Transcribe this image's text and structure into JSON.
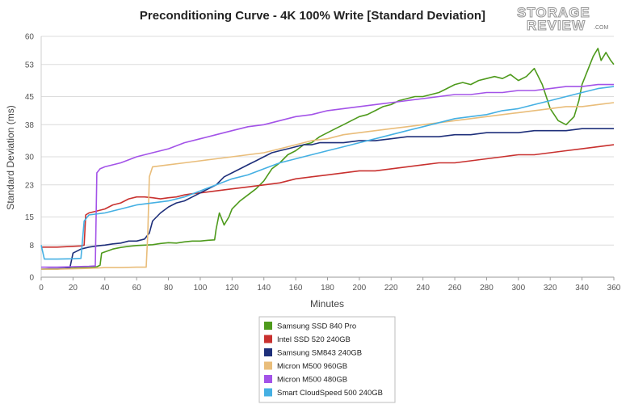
{
  "chart_data": {
    "type": "line",
    "title": "Preconditioning Curve - 4K 100% Write [Standard Deviation]",
    "xlabel": "Minutes",
    "ylabel": "Standard Deviation (ms)",
    "xlim": [
      0,
      360
    ],
    "ylim": [
      0,
      60
    ],
    "x_ticks": [
      "0",
      "20",
      "40",
      "60",
      "80",
      "100",
      "120",
      "140",
      "160",
      "180",
      "200",
      "220",
      "240",
      "260",
      "280",
      "300",
      "320",
      "340",
      "360"
    ],
    "y_ticks": [
      "0",
      "8",
      "15",
      "23",
      "30",
      "38",
      "45",
      "53",
      "60"
    ],
    "grid": "horizontal",
    "legend_position": "bottom",
    "series": [
      {
        "name": "Samsung SSD 840 Pro",
        "color": "#4e9a1c",
        "points": [
          [
            0,
            2
          ],
          [
            5,
            2
          ],
          [
            10,
            2
          ],
          [
            15,
            2.2
          ],
          [
            20,
            2.3
          ],
          [
            25,
            2.5
          ],
          [
            30,
            2.4
          ],
          [
            35,
            2.6
          ],
          [
            37,
            3
          ],
          [
            38,
            6
          ],
          [
            40,
            6.3
          ],
          [
            45,
            7
          ],
          [
            50,
            7.4
          ],
          [
            55,
            7.7
          ],
          [
            60,
            7.9
          ],
          [
            65,
            8
          ],
          [
            70,
            8.1
          ],
          [
            75,
            8.4
          ],
          [
            80,
            8.6
          ],
          [
            85,
            8.5
          ],
          [
            90,
            8.8
          ],
          [
            95,
            9
          ],
          [
            100,
            9
          ],
          [
            105,
            9.2
          ],
          [
            109,
            9.3
          ],
          [
            110,
            12
          ],
          [
            112,
            16
          ],
          [
            115,
            13
          ],
          [
            118,
            15
          ],
          [
            120,
            17
          ],
          [
            125,
            19
          ],
          [
            130,
            20.5
          ],
          [
            135,
            22
          ],
          [
            140,
            24
          ],
          [
            145,
            27
          ],
          [
            150,
            28.5
          ],
          [
            155,
            30.5
          ],
          [
            160,
            31.5
          ],
          [
            165,
            33
          ],
          [
            170,
            33.5
          ],
          [
            175,
            35
          ],
          [
            180,
            36
          ],
          [
            185,
            37
          ],
          [
            190,
            38
          ],
          [
            195,
            39
          ],
          [
            200,
            40
          ],
          [
            205,
            40.5
          ],
          [
            210,
            41.5
          ],
          [
            215,
            42.5
          ],
          [
            220,
            43
          ],
          [
            225,
            44
          ],
          [
            230,
            44.5
          ],
          [
            235,
            45
          ],
          [
            240,
            45
          ],
          [
            245,
            45.5
          ],
          [
            250,
            46
          ],
          [
            255,
            47
          ],
          [
            260,
            48
          ],
          [
            265,
            48.5
          ],
          [
            270,
            48
          ],
          [
            275,
            49
          ],
          [
            280,
            49.5
          ],
          [
            285,
            50
          ],
          [
            290,
            49.5
          ],
          [
            295,
            50.5
          ],
          [
            300,
            49
          ],
          [
            305,
            50
          ],
          [
            310,
            52
          ],
          [
            315,
            48
          ],
          [
            320,
            42
          ],
          [
            325,
            39
          ],
          [
            330,
            38
          ],
          [
            335,
            40
          ],
          [
            338,
            44
          ],
          [
            340,
            48
          ],
          [
            344,
            52
          ],
          [
            347,
            55
          ],
          [
            350,
            57
          ],
          [
            352,
            54
          ],
          [
            355,
            56
          ],
          [
            358,
            54
          ],
          [
            360,
            53
          ]
        ]
      },
      {
        "name": "Intel SSD 520 240GB",
        "color": "#c8312f",
        "points": [
          [
            0,
            7.5
          ],
          [
            5,
            7.5
          ],
          [
            10,
            7.5
          ],
          [
            15,
            7.6
          ],
          [
            20,
            7.7
          ],
          [
            25,
            7.8
          ],
          [
            27,
            8
          ],
          [
            28,
            15.5
          ],
          [
            30,
            16
          ],
          [
            35,
            16.5
          ],
          [
            40,
            17
          ],
          [
            45,
            18
          ],
          [
            50,
            18.5
          ],
          [
            55,
            19.5
          ],
          [
            60,
            20
          ],
          [
            65,
            20
          ],
          [
            70,
            19.8
          ],
          [
            75,
            19.5
          ],
          [
            80,
            19.8
          ],
          [
            85,
            20
          ],
          [
            90,
            20.5
          ],
          [
            95,
            20.8
          ],
          [
            100,
            21
          ],
          [
            110,
            21.5
          ],
          [
            120,
            22
          ],
          [
            130,
            22.5
          ],
          [
            140,
            23
          ],
          [
            150,
            23.5
          ],
          [
            160,
            24.5
          ],
          [
            170,
            25
          ],
          [
            180,
            25.5
          ],
          [
            190,
            26
          ],
          [
            200,
            26.5
          ],
          [
            210,
            26.5
          ],
          [
            220,
            27
          ],
          [
            230,
            27.5
          ],
          [
            240,
            28
          ],
          [
            250,
            28.5
          ],
          [
            260,
            28.5
          ],
          [
            270,
            29
          ],
          [
            280,
            29.5
          ],
          [
            290,
            30
          ],
          [
            300,
            30.5
          ],
          [
            310,
            30.5
          ],
          [
            320,
            31
          ],
          [
            330,
            31.5
          ],
          [
            340,
            32
          ],
          [
            350,
            32.5
          ],
          [
            360,
            33
          ]
        ]
      },
      {
        "name": "Samsung SM843 240GB",
        "color": "#1e2f7a",
        "points": [
          [
            0,
            2
          ],
          [
            5,
            2.1
          ],
          [
            10,
            2.1
          ],
          [
            15,
            2.2
          ],
          [
            18,
            2.3
          ],
          [
            20,
            6
          ],
          [
            25,
            7
          ],
          [
            30,
            7.5
          ],
          [
            35,
            7.8
          ],
          [
            40,
            8
          ],
          [
            45,
            8.3
          ],
          [
            50,
            8.5
          ],
          [
            55,
            9
          ],
          [
            60,
            9
          ],
          [
            65,
            9.5
          ],
          [
            68,
            11
          ],
          [
            70,
            14
          ],
          [
            75,
            16
          ],
          [
            80,
            17.5
          ],
          [
            85,
            18.5
          ],
          [
            90,
            19
          ],
          [
            95,
            20
          ],
          [
            100,
            21
          ],
          [
            105,
            22
          ],
          [
            110,
            23
          ],
          [
            115,
            25
          ],
          [
            120,
            26
          ],
          [
            125,
            27
          ],
          [
            130,
            28
          ],
          [
            135,
            29
          ],
          [
            140,
            30
          ],
          [
            145,
            31
          ],
          [
            150,
            31.5
          ],
          [
            155,
            32
          ],
          [
            160,
            32.5
          ],
          [
            165,
            33
          ],
          [
            170,
            33
          ],
          [
            175,
            33.5
          ],
          [
            180,
            33.5
          ],
          [
            190,
            33.5
          ],
          [
            200,
            34
          ],
          [
            210,
            34
          ],
          [
            220,
            34.5
          ],
          [
            230,
            35
          ],
          [
            240,
            35
          ],
          [
            250,
            35
          ],
          [
            260,
            35.5
          ],
          [
            270,
            35.5
          ],
          [
            280,
            36
          ],
          [
            290,
            36
          ],
          [
            300,
            36
          ],
          [
            310,
            36.5
          ],
          [
            320,
            36.5
          ],
          [
            330,
            36.5
          ],
          [
            340,
            37
          ],
          [
            350,
            37
          ],
          [
            360,
            37
          ]
        ]
      },
      {
        "name": "Micron M500 960GB",
        "color": "#e9bd7a",
        "points": [
          [
            0,
            2
          ],
          [
            10,
            2
          ],
          [
            20,
            2.1
          ],
          [
            30,
            2.2
          ],
          [
            36,
            2.3
          ],
          [
            40,
            2.4
          ],
          [
            50,
            2.4
          ],
          [
            60,
            2.5
          ],
          [
            66,
            2.5
          ],
          [
            67,
            11
          ],
          [
            68,
            25
          ],
          [
            70,
            27.5
          ],
          [
            80,
            28
          ],
          [
            90,
            28.5
          ],
          [
            100,
            29
          ],
          [
            110,
            29.5
          ],
          [
            120,
            30
          ],
          [
            130,
            30.5
          ],
          [
            140,
            31
          ],
          [
            150,
            32
          ],
          [
            160,
            33
          ],
          [
            170,
            34
          ],
          [
            180,
            34.5
          ],
          [
            190,
            35.5
          ],
          [
            200,
            36
          ],
          [
            210,
            36.5
          ],
          [
            220,
            37
          ],
          [
            230,
            37.5
          ],
          [
            240,
            38
          ],
          [
            250,
            38.5
          ],
          [
            260,
            39
          ],
          [
            270,
            39.5
          ],
          [
            280,
            40
          ],
          [
            290,
            40.5
          ],
          [
            300,
            41
          ],
          [
            310,
            41.5
          ],
          [
            320,
            42
          ],
          [
            330,
            42.5
          ],
          [
            340,
            42.5
          ],
          [
            350,
            43
          ],
          [
            360,
            43.5
          ]
        ]
      },
      {
        "name": "Micron M500 480GB",
        "color": "#a353e8",
        "points": [
          [
            0,
            2.5
          ],
          [
            10,
            2.5
          ],
          [
            20,
            2.6
          ],
          [
            30,
            2.7
          ],
          [
            34,
            2.8
          ],
          [
            35,
            26
          ],
          [
            37,
            27
          ],
          [
            40,
            27.5
          ],
          [
            50,
            28.5
          ],
          [
            60,
            30
          ],
          [
            70,
            31
          ],
          [
            80,
            32
          ],
          [
            90,
            33.5
          ],
          [
            100,
            34.5
          ],
          [
            110,
            35.5
          ],
          [
            120,
            36.5
          ],
          [
            130,
            37.5
          ],
          [
            140,
            38
          ],
          [
            150,
            39
          ],
          [
            160,
            40
          ],
          [
            170,
            40.5
          ],
          [
            180,
            41.5
          ],
          [
            190,
            42
          ],
          [
            200,
            42.5
          ],
          [
            210,
            43
          ],
          [
            220,
            43.5
          ],
          [
            230,
            44
          ],
          [
            240,
            44.5
          ],
          [
            250,
            45
          ],
          [
            260,
            45.5
          ],
          [
            270,
            45.5
          ],
          [
            280,
            46
          ],
          [
            290,
            46
          ],
          [
            300,
            46.5
          ],
          [
            310,
            46.5
          ],
          [
            320,
            47
          ],
          [
            330,
            47.5
          ],
          [
            340,
            47.5
          ],
          [
            350,
            48
          ],
          [
            360,
            48
          ]
        ]
      },
      {
        "name": "Smart CloudSpeed 500 240GB",
        "color": "#45b0e3",
        "points": [
          [
            0,
            8
          ],
          [
            2,
            4.5
          ],
          [
            10,
            4.5
          ],
          [
            20,
            4.6
          ],
          [
            25,
            4.7
          ],
          [
            27,
            14
          ],
          [
            30,
            15.5
          ],
          [
            40,
            16
          ],
          [
            50,
            17
          ],
          [
            60,
            18
          ],
          [
            70,
            18.5
          ],
          [
            80,
            19
          ],
          [
            90,
            20
          ],
          [
            100,
            21.5
          ],
          [
            110,
            23
          ],
          [
            120,
            24.5
          ],
          [
            130,
            25.5
          ],
          [
            140,
            27
          ],
          [
            150,
            28.5
          ],
          [
            160,
            29.5
          ],
          [
            170,
            30.5
          ],
          [
            180,
            31.5
          ],
          [
            190,
            32.5
          ],
          [
            200,
            33.5
          ],
          [
            210,
            34.5
          ],
          [
            220,
            35.5
          ],
          [
            230,
            36.5
          ],
          [
            240,
            37.5
          ],
          [
            250,
            38.5
          ],
          [
            260,
            39.5
          ],
          [
            270,
            40
          ],
          [
            280,
            40.5
          ],
          [
            290,
            41.5
          ],
          [
            300,
            42
          ],
          [
            310,
            43
          ],
          [
            320,
            44
          ],
          [
            330,
            45
          ],
          [
            340,
            46
          ],
          [
            350,
            47
          ],
          [
            360,
            47.5
          ]
        ]
      }
    ]
  },
  "logo": {
    "line1": "STORAGE",
    "line2": "REVIEW",
    "suffix": ".COM"
  }
}
